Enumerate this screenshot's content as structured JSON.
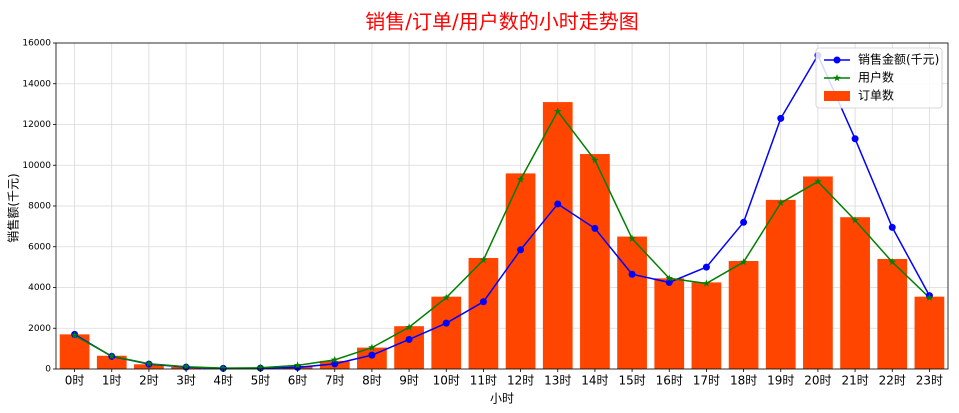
{
  "chart_data": {
    "type": "bar+line",
    "title": "销售/订单/用户数的小时走势图",
    "title_color": "#ff0000",
    "xlabel": "小时",
    "ylabel": "销售额(千元)",
    "ylim": [
      0,
      16000
    ],
    "yticks": [
      0,
      2000,
      4000,
      6000,
      8000,
      10000,
      12000,
      14000,
      16000
    ],
    "grid": true,
    "legend_position": "top-right",
    "categories": [
      "0时",
      "1时",
      "2时",
      "3时",
      "4时",
      "5时",
      "6时",
      "7时",
      "8时",
      "9时",
      "10时",
      "11时",
      "12时",
      "13时",
      "14时",
      "15时",
      "16时",
      "17时",
      "18时",
      "19时",
      "20时",
      "21时",
      "22时",
      "23时"
    ],
    "series": [
      {
        "name": "销售金额(千元)",
        "kind": "line",
        "marker": "circle",
        "color": "#0000ff",
        "values": [
          1700,
          620,
          240,
          90,
          30,
          40,
          80,
          250,
          680,
          1450,
          2250,
          3300,
          5850,
          8100,
          6900,
          4650,
          4250,
          5000,
          7200,
          12300,
          15400,
          11300,
          6950,
          3600
        ]
      },
      {
        "name": "用户数",
        "kind": "line",
        "marker": "star",
        "color": "#008000",
        "values": [
          1650,
          630,
          260,
          110,
          40,
          60,
          180,
          450,
          1050,
          2050,
          3500,
          5350,
          9300,
          12650,
          10250,
          6400,
          4450,
          4200,
          5250,
          8150,
          9200,
          7300,
          5250,
          3500
        ]
      },
      {
        "name": "订单数",
        "kind": "bar",
        "color": "#ff4500",
        "values": [
          1700,
          650,
          230,
          100,
          40,
          50,
          150,
          400,
          1050,
          2100,
          3550,
          5450,
          9600,
          13100,
          10550,
          6500,
          4450,
          4250,
          5300,
          8300,
          9450,
          7450,
          5400,
          3550
        ]
      }
    ]
  }
}
